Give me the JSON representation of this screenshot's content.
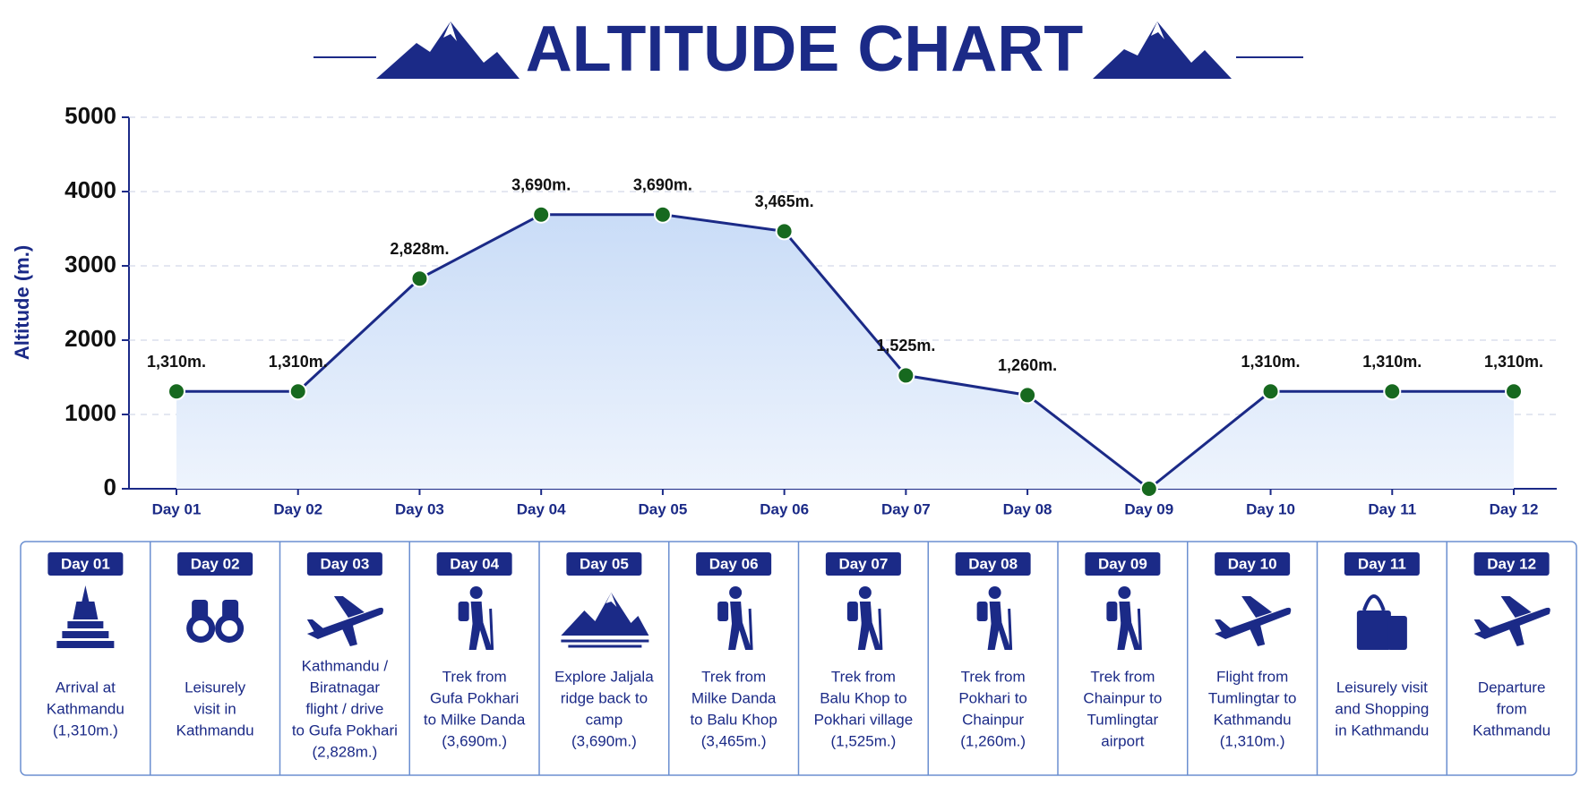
{
  "chart_data": {
    "type": "line",
    "title": "ALTITUDE CHART",
    "y_label": "Altitude (m.)",
    "categories": [
      "Day 01",
      "Day 02",
      "Day 03",
      "Day 04",
      "Day 05",
      "Day 06",
      "Day 07",
      "Day 08",
      "Day 09",
      "Day 10",
      "Day 11",
      "Day 12"
    ],
    "values": [
      1310,
      1310,
      2828,
      3690,
      3690,
      3465,
      1525,
      1260,
      0,
      1310,
      1310,
      1310
    ],
    "value_labels": [
      "1,310m.",
      "1,310m.",
      "2,828m.",
      "3,690m.",
      "3,690m.",
      "3,465m.",
      "1,525m.",
      "1,260m.",
      null,
      "1,310m.",
      "1,310m.",
      "1,310m."
    ],
    "color": "#1b2a87",
    "marker_color": "#17691f",
    "ylim": [
      0,
      5000
    ],
    "yticks": [
      0,
      1000,
      2000,
      3000,
      4000,
      5000
    ],
    "grid": true
  },
  "itinerary": [
    {
      "day": "Day 01",
      "text": [
        "Arrival at",
        "Kathmandu",
        "(1,310m.)"
      ]
    },
    {
      "day": "Day 02",
      "text": [
        "Leisurely",
        "visit in",
        "Kathmandu"
      ]
    },
    {
      "day": "Day 03",
      "text": [
        "Kathmandu /",
        "Biratnagar",
        "flight / drive",
        "to Gufa Pokhari",
        "(2,828m.)"
      ]
    },
    {
      "day": "Day 04",
      "text": [
        "Trek from",
        "Gufa Pokhari",
        "to Milke Danda",
        "(3,690m.)"
      ]
    },
    {
      "day": "Day 05",
      "text": [
        "Explore Jaljala",
        "ridge back to",
        "camp",
        "(3,690m.)"
      ]
    },
    {
      "day": "Day 06",
      "text": [
        "Trek from",
        "Milke Danda",
        "to Balu Khop",
        "(3,465m.)"
      ]
    },
    {
      "day": "Day 07",
      "text": [
        "Trek from",
        "Balu Khop to",
        "Pokhari village",
        "(1,525m.)"
      ]
    },
    {
      "day": "Day 08",
      "text": [
        "Trek from",
        "Pokhari to",
        "Chainpur",
        "(1,260m.)"
      ]
    },
    {
      "day": "Day 09",
      "text": [
        "Trek from",
        "Chainpur to",
        "Tumlingtar",
        "airport"
      ]
    },
    {
      "day": "Day 10",
      "text": [
        "Flight from",
        "Tumlingtar to",
        "Kathmandu",
        "(1,310m.)"
      ]
    },
    {
      "day": "Day 11",
      "text": [
        "Leisurely visit",
        "and Shopping",
        "in Kathmandu"
      ]
    },
    {
      "day": "Day 12",
      "text": [
        "Departure",
        "from",
        "Kathmandu"
      ]
    }
  ]
}
